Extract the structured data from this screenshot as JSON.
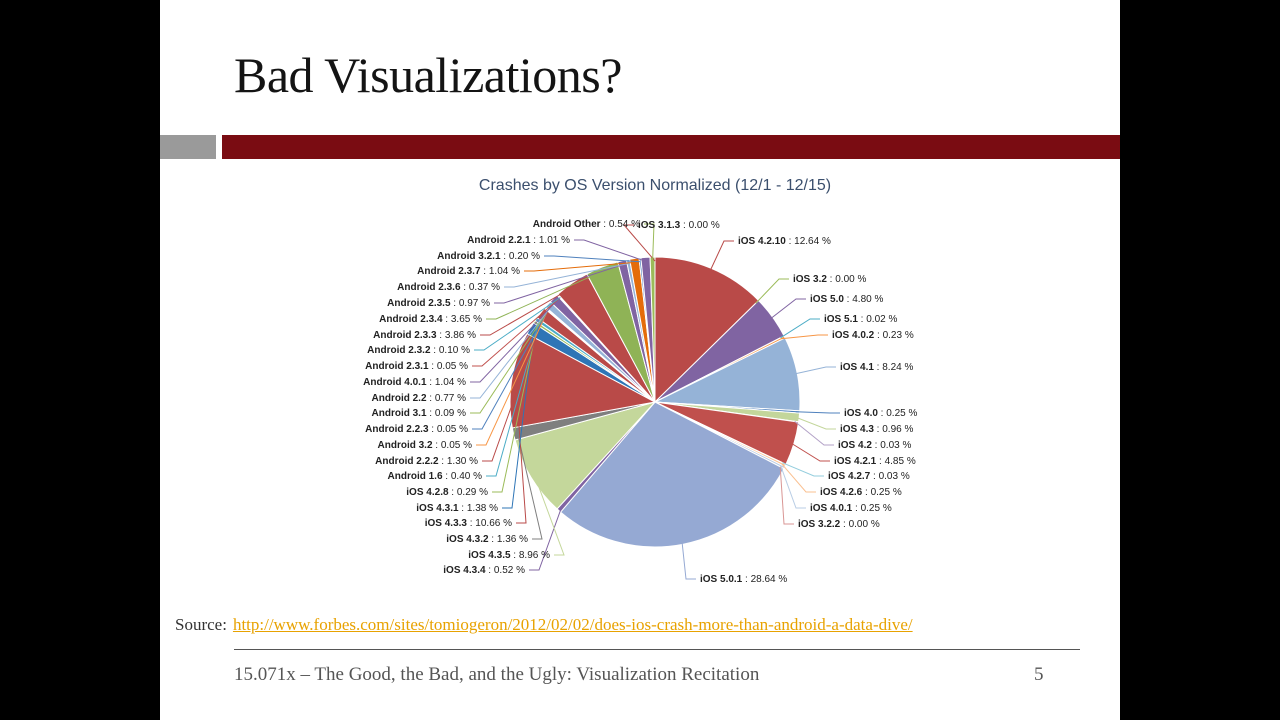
{
  "slide": {
    "title": "Bad Visualizations?",
    "source_prefix": "Source:",
    "source_url": "http://www.forbes.com/sites/tomiogeron/2012/02/02/does-ios-crash-more-than-android-a-data-dive/",
    "footer": "15.071x – The Good, the Bad, and the Ugly: Visualization Recitation",
    "page_number": "5"
  },
  "chart_data": {
    "type": "pie",
    "title": "Crashes by OS Version Normalized (12/1 - 12/15)",
    "slices": [
      {
        "label": "iOS 3.1.3",
        "value": 0.0,
        "color": "#b94a48"
      },
      {
        "label": "iOS 4.2.10",
        "value": 12.64,
        "color": "#b94a48"
      },
      {
        "label": "iOS 3.2",
        "value": 0.0,
        "color": "#9bbb59"
      },
      {
        "label": "iOS 5.0",
        "value": 4.8,
        "color": "#8064a2"
      },
      {
        "label": "iOS 5.1",
        "value": 0.02,
        "color": "#4bacc6"
      },
      {
        "label": "iOS 4.0.2",
        "value": 0.23,
        "color": "#f79646"
      },
      {
        "label": "iOS 4.1",
        "value": 8.24,
        "color": "#95b3d7"
      },
      {
        "label": "iOS 4.0",
        "value": 0.25,
        "color": "#4f81bd"
      },
      {
        "label": "iOS 4.3",
        "value": 0.96,
        "color": "#c3d69b"
      },
      {
        "label": "iOS 4.2",
        "value": 0.03,
        "color": "#b3a2c7"
      },
      {
        "label": "iOS 4.2.1",
        "value": 4.85,
        "color": "#c0504d"
      },
      {
        "label": "iOS 4.2.7",
        "value": 0.03,
        "color": "#93cddd"
      },
      {
        "label": "iOS 4.2.6",
        "value": 0.25,
        "color": "#fac090"
      },
      {
        "label": "iOS 4.0.1",
        "value": 0.25,
        "color": "#b9cde5"
      },
      {
        "label": "iOS 3.2.2",
        "value": 0.0,
        "color": "#d99694"
      },
      {
        "label": "iOS 5.0.1",
        "value": 28.64,
        "color": "#95a9d3"
      },
      {
        "label": "iOS 4.3.4",
        "value": 0.52,
        "color": "#8064a2"
      },
      {
        "label": "iOS 4.3.5",
        "value": 8.96,
        "color": "#c4d79b"
      },
      {
        "label": "iOS 4.3.2",
        "value": 1.36,
        "color": "#7f7f7f"
      },
      {
        "label": "iOS 4.3.3",
        "value": 10.66,
        "color": "#b94a48"
      },
      {
        "label": "iOS 4.3.1",
        "value": 1.38,
        "color": "#2e75b6"
      },
      {
        "label": "iOS 4.2.8",
        "value": 0.29,
        "color": "#9bbb59"
      },
      {
        "label": "Android 1.6",
        "value": 0.4,
        "color": "#4bacc6"
      },
      {
        "label": "Android 2.2.2",
        "value": 1.3,
        "color": "#b94a48"
      },
      {
        "label": "Android 3.2",
        "value": 0.05,
        "color": "#f79646"
      },
      {
        "label": "Android 2.2.3",
        "value": 0.05,
        "color": "#4f81bd"
      },
      {
        "label": "Android 3.1",
        "value": 0.09,
        "color": "#9bbb59"
      },
      {
        "label": "Android 2.2",
        "value": 0.77,
        "color": "#95b3d7"
      },
      {
        "label": "Android 4.0.1",
        "value": 1.04,
        "color": "#8064a2"
      },
      {
        "label": "Android 2.3.1",
        "value": 0.05,
        "color": "#c0504d"
      },
      {
        "label": "Android 2.3.2",
        "value": 0.1,
        "color": "#4bacc6"
      },
      {
        "label": "Android 2.3.3",
        "value": 3.86,
        "color": "#b94a48"
      },
      {
        "label": "Android 2.3.4",
        "value": 3.65,
        "color": "#8fb356"
      },
      {
        "label": "Android 2.3.5",
        "value": 0.97,
        "color": "#8064a2"
      },
      {
        "label": "Android 2.3.6",
        "value": 0.37,
        "color": "#95b3d7"
      },
      {
        "label": "Android 2.3.7",
        "value": 1.04,
        "color": "#e46c0a"
      },
      {
        "label": "Android 3.2.1",
        "value": 0.2,
        "color": "#4f81bd"
      },
      {
        "label": "Android 2.2.1",
        "value": 1.01,
        "color": "#8064a2"
      },
      {
        "label": "Android Other",
        "value": 0.54,
        "color": "#9bbb59"
      }
    ],
    "legend_placement": "none (callout labels around pie)"
  }
}
